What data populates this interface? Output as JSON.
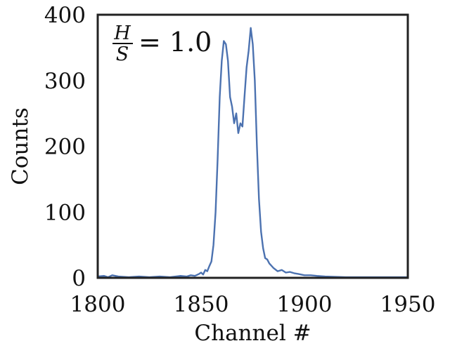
{
  "chart_data": {
    "type": "line",
    "xlabel": "Channel #",
    "ylabel": "Counts",
    "xlim": [
      1800,
      1950
    ],
    "ylim": [
      0,
      400
    ],
    "xticks": [
      1800,
      1850,
      1900,
      1950
    ],
    "yticks": [
      0,
      100,
      200,
      300,
      400
    ],
    "grid": false,
    "annotation": {
      "numerator": "H",
      "denominator": "S",
      "rhs": "= 1.0"
    },
    "colors": {
      "line": "#4c72b0",
      "axes": "#222222"
    },
    "series": [
      {
        "x": [
          1800,
          1803,
          1805,
          1807,
          1810,
          1815,
          1820,
          1825,
          1830,
          1835,
          1840,
          1843,
          1845,
          1847,
          1849,
          1850,
          1851,
          1852,
          1853,
          1854,
          1855,
          1856,
          1857,
          1858,
          1859,
          1860,
          1861,
          1862,
          1863,
          1864,
          1865,
          1866,
          1867,
          1868,
          1869,
          1870,
          1871,
          1872,
          1873,
          1874,
          1875,
          1876,
          1877,
          1878,
          1879,
          1880,
          1881,
          1882,
          1883,
          1885,
          1887,
          1889,
          1891,
          1893,
          1895,
          1897,
          1900,
          1903,
          1906,
          1910,
          1920,
          1930,
          1940,
          1950
        ],
        "y": [
          2,
          3,
          1,
          4,
          2,
          1,
          2,
          1,
          2,
          1,
          3,
          2,
          4,
          3,
          6,
          8,
          5,
          12,
          10,
          18,
          25,
          50,
          100,
          180,
          275,
          330,
          360,
          355,
          330,
          275,
          260,
          235,
          250,
          220,
          235,
          230,
          275,
          320,
          345,
          380,
          355,
          300,
          200,
          120,
          70,
          45,
          30,
          28,
          22,
          15,
          10,
          12,
          8,
          9,
          7,
          6,
          4,
          4,
          3,
          2,
          1,
          1,
          1,
          1
        ]
      }
    ]
  }
}
